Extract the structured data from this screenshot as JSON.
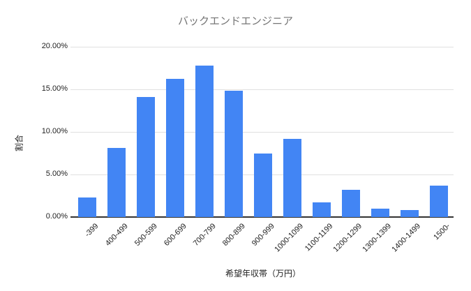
{
  "chart_data": {
    "type": "bar",
    "title": "バックエンドエンジニア",
    "xlabel": "希望年収帯（万円）",
    "ylabel": "割合",
    "categories": [
      "-399",
      "400-499",
      "500-599",
      "600-699",
      "700-799",
      "800-899",
      "900-999",
      "1000-1099",
      "1100-1199",
      "1200-1299",
      "1300-1399",
      "1400-1499",
      "1500-"
    ],
    "values": [
      2.3,
      8.1,
      14.1,
      16.2,
      17.8,
      14.8,
      7.5,
      9.2,
      1.7,
      3.2,
      1.0,
      0.8,
      3.7
    ],
    "y_ticks": [
      "20.00%",
      "15.00%",
      "10.00%",
      "5.00%",
      "0.00%"
    ],
    "ylim": [
      0,
      20
    ],
    "grid": true,
    "legend": "none",
    "colors": {
      "bar": "#4285f4",
      "gridline": "#e0e0e0",
      "axis_line": "#333333",
      "title": "#757575",
      "tick_label": "#222222",
      "axis_title": "#222222",
      "background": "#ffffff"
    }
  }
}
